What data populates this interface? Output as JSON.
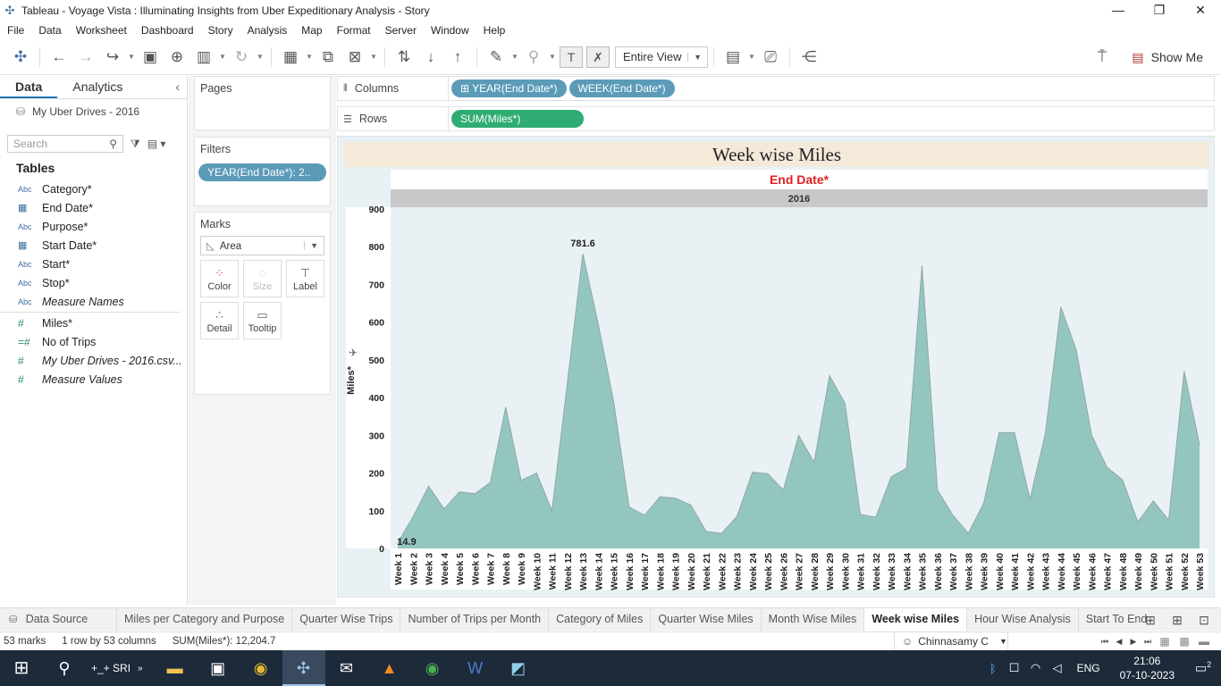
{
  "window": {
    "title": "Tableau - Voyage Vista : Illuminating Insights from Uber Expeditionary Analysis - Story",
    "controls": [
      "—",
      "❐",
      "✕"
    ]
  },
  "menu": [
    "File",
    "Data",
    "Worksheet",
    "Dashboard",
    "Story",
    "Analysis",
    "Map",
    "Format",
    "Server",
    "Window",
    "Help"
  ],
  "toolbar": {
    "fit_select": "Entire View",
    "show_me": "Show Me"
  },
  "data_pane": {
    "tab_data": "Data",
    "tab_analytics": "Analytics",
    "datasource": "My Uber Drives - 2016",
    "search_placeholder": "Search",
    "tables_heading": "Tables",
    "dimensions": [
      {
        "type": "Abc",
        "name": "Category*"
      },
      {
        "type": "date",
        "name": "End Date*"
      },
      {
        "type": "Abc",
        "name": "Purpose*"
      },
      {
        "type": "date",
        "name": "Start Date*"
      },
      {
        "type": "Abc",
        "name": "Start*"
      },
      {
        "type": "Abc",
        "name": "Stop*"
      },
      {
        "type": "Abc",
        "name": "Measure Names"
      }
    ],
    "measures": [
      {
        "type": "#",
        "name": "Miles*"
      },
      {
        "type": "=#",
        "name": "No of Trips"
      },
      {
        "type": "#",
        "name": "My Uber Drives - 2016.csv..."
      },
      {
        "type": "#",
        "name": "Measure Values"
      }
    ]
  },
  "cards": {
    "pages": "Pages",
    "filters": "Filters",
    "filter_pill": "YEAR(End Date*): 2..",
    "marks": "Marks",
    "mark_type": "Area",
    "mark_buttons": [
      "Color",
      "Size",
      "Label",
      "Detail",
      "Tooltip"
    ]
  },
  "shelves": {
    "columns_label": "Columns",
    "columns_pills": [
      "⊞ YEAR(End Date*)",
      "WEEK(End Date*)"
    ],
    "rows_label": "Rows",
    "rows_pills": [
      "SUM(Miles*)"
    ]
  },
  "viz": {
    "title": "Week wise Miles",
    "header_field": "End Date*",
    "header_year": "2016"
  },
  "chart_data": {
    "type": "area",
    "title": "Week wise Miles",
    "ylabel": "Miles*",
    "ylim": [
      0,
      900
    ],
    "yticks": [
      0,
      100,
      200,
      300,
      400,
      500,
      600,
      700,
      800,
      900
    ],
    "grid": false,
    "colors": {
      "fill": "#94c6c0",
      "stroke": "#8fa8a6"
    },
    "categories": [
      "Week 1",
      "Week 2",
      "Week 3",
      "Week 4",
      "Week 5",
      "Week 6",
      "Week 7",
      "Week 8",
      "Week 9",
      "Week 10",
      "Week 11",
      "Week 12",
      "Week 13",
      "Week 14",
      "Week 15",
      "Week 16",
      "Week 17",
      "Week 18",
      "Week 19",
      "Week 20",
      "Week 21",
      "Week 22",
      "Week 23",
      "Week 24",
      "Week 25",
      "Week 26",
      "Week 27",
      "Week 28",
      "Week 29",
      "Week 30",
      "Week 31",
      "Week 32",
      "Week 33",
      "Week 34",
      "Week 35",
      "Week 36",
      "Week 37",
      "Week 38",
      "Week 39",
      "Week 40",
      "Week 41",
      "Week 42",
      "Week 43",
      "Week 44",
      "Week 45",
      "Week 46",
      "Week 47",
      "Week 48",
      "Week 49",
      "Week 50",
      "Week 51",
      "Week 52",
      "Week 53"
    ],
    "values": [
      14.9,
      85,
      165,
      105,
      150,
      145,
      175,
      375,
      180,
      200,
      100,
      440,
      781.6,
      595,
      390,
      110,
      88,
      137,
      133,
      115,
      45,
      40,
      85,
      202,
      198,
      155,
      300,
      228,
      458,
      385,
      90,
      83,
      190,
      213,
      750,
      155,
      88,
      40,
      120,
      307,
      307,
      130,
      305,
      640,
      527,
      300,
      215,
      182,
      70,
      126,
      75,
      470,
      275
    ],
    "labels": [
      {
        "index": 12,
        "text": "781.6"
      },
      {
        "index": 0,
        "text": "14.9"
      }
    ]
  },
  "sheet_tabs": {
    "data_source": "Data Source",
    "tabs": [
      "Miles per Category and Purpose",
      "Quarter Wise Trips",
      "Number of Trips per Month",
      "Category of Miles",
      "Quarter Wise Miles",
      "Month Wise Miles",
      "Week wise Miles",
      "Hour Wise Analysis",
      "Start To End"
    ],
    "active": "Week wise Miles"
  },
  "status": {
    "marks": "53 marks",
    "dims": "1 row by 53 columns",
    "sum": "SUM(Miles*): 12,204.7",
    "user": "Chinnasamy C"
  },
  "taskbar": {
    "sri": "+_+ SRI",
    "lang": "ENG",
    "time": "21:06",
    "date": "07-10-2023",
    "notifications": "2"
  }
}
